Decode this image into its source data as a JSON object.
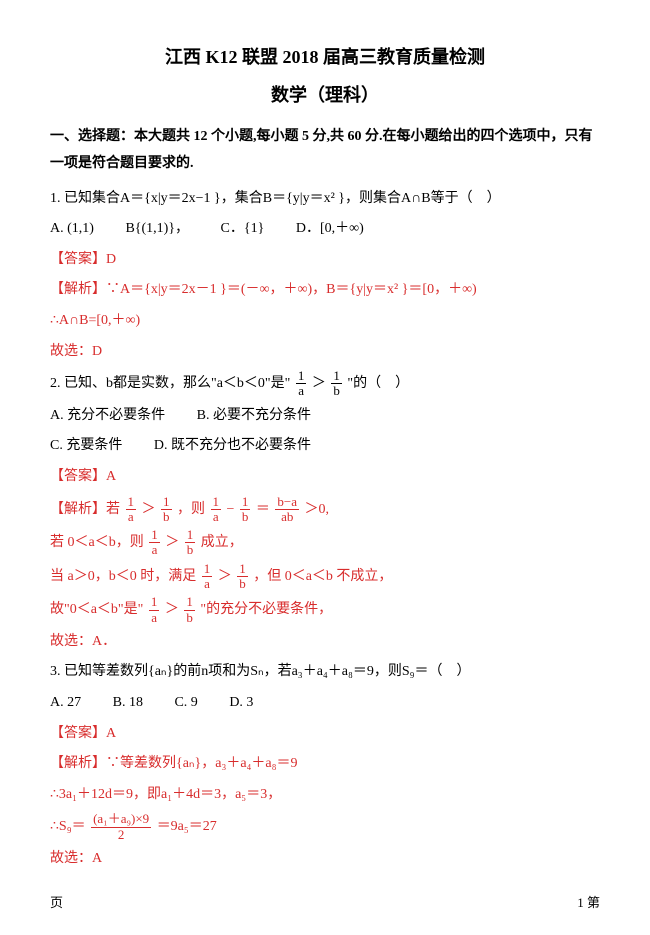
{
  "colors": {
    "red": "#d82c2c",
    "black": "#000000",
    "blue": "#5a7fd0"
  },
  "title1": "江西 K12 联盟 2018 届高三教育质量检测",
  "title2": "数学（理科）",
  "section_head": "一、选择题：本大题共 12 个小题,每小题 5 分,共 60 分.在每小题给出的四个选项中，只有一项是符合题目要求的.",
  "q1": {
    "stem": "1. 已知集合A＝{x|y＝2x−1 }，集合B＝{y|y＝x² }，则集合A∩B等于（　）",
    "optA": "A. (1,1)",
    "optB": "B{(1,1)}，",
    "optC": "C．{1}",
    "optD": "D．[0,＋∞)",
    "ans": "【答案】D",
    "exp1": "【解析】∵A＝{x|y＝2x－1 }＝(－∞，＋∞)，B＝{y|y＝x² }＝[0，＋∞)",
    "exp2": "∴A∩B=[0,＋∞)",
    "exp3": "故选：D"
  },
  "q2": {
    "stem_a": "2. 已知、b都是实数，那么\"a＜b＜0\"是\"",
    "stem_b": "\"的（　）",
    "frac1_num": "1",
    "frac1_den": "a",
    "frac2_num": "1",
    "frac2_den": "b",
    "A": "A. 充分不必要条件",
    "B": "B. 必要不充分条件",
    "C": "C. 充要条件",
    "D": "D. 既不充分也不必要条件",
    "ans": "【答案】A",
    "exp1_a": "【解析】若",
    "exp1_b": "，则",
    "exp1_c": "＞0,",
    "exp_ba_num": "b−a",
    "exp_ba_den": "ab",
    "exp2_a": "若 0＜a＜b，则",
    "exp2_b": "成立，",
    "exp3_a": "当 a＞0，b＜0 时，满足",
    "exp3_b": "，但 0＜a＜b 不成立，",
    "exp4_a": "故\"0＜a＜b\"是\"",
    "exp4_b": "\"的充分不必要条件，",
    "exp5": "故选：A．"
  },
  "q3": {
    "stem": "3. 已知等差数列{aₙ}的前n项和为Sₙ，若a₃＋a₄＋a₈＝9，则S₉＝（　）",
    "A": "A. 27",
    "B": "B. 18",
    "C": "C. 9",
    "D": "D. 3",
    "ans": "【答案】A",
    "exp1": "【解析】∵等差数列{aₙ}，a₃＋a₄＋a₈＝9",
    "exp2": "∴3a₁＋12d＝9，即a₁＋4d＝3，a₅＝3，",
    "exp3_a": "∴S₉＝",
    "exp3_num": "(a₁＋a₉)×9",
    "exp3_den": "2",
    "exp3_b": "＝9a₅＝27",
    "exp4": "故选：A"
  },
  "footer_left": "页",
  "footer_right": "1 第"
}
